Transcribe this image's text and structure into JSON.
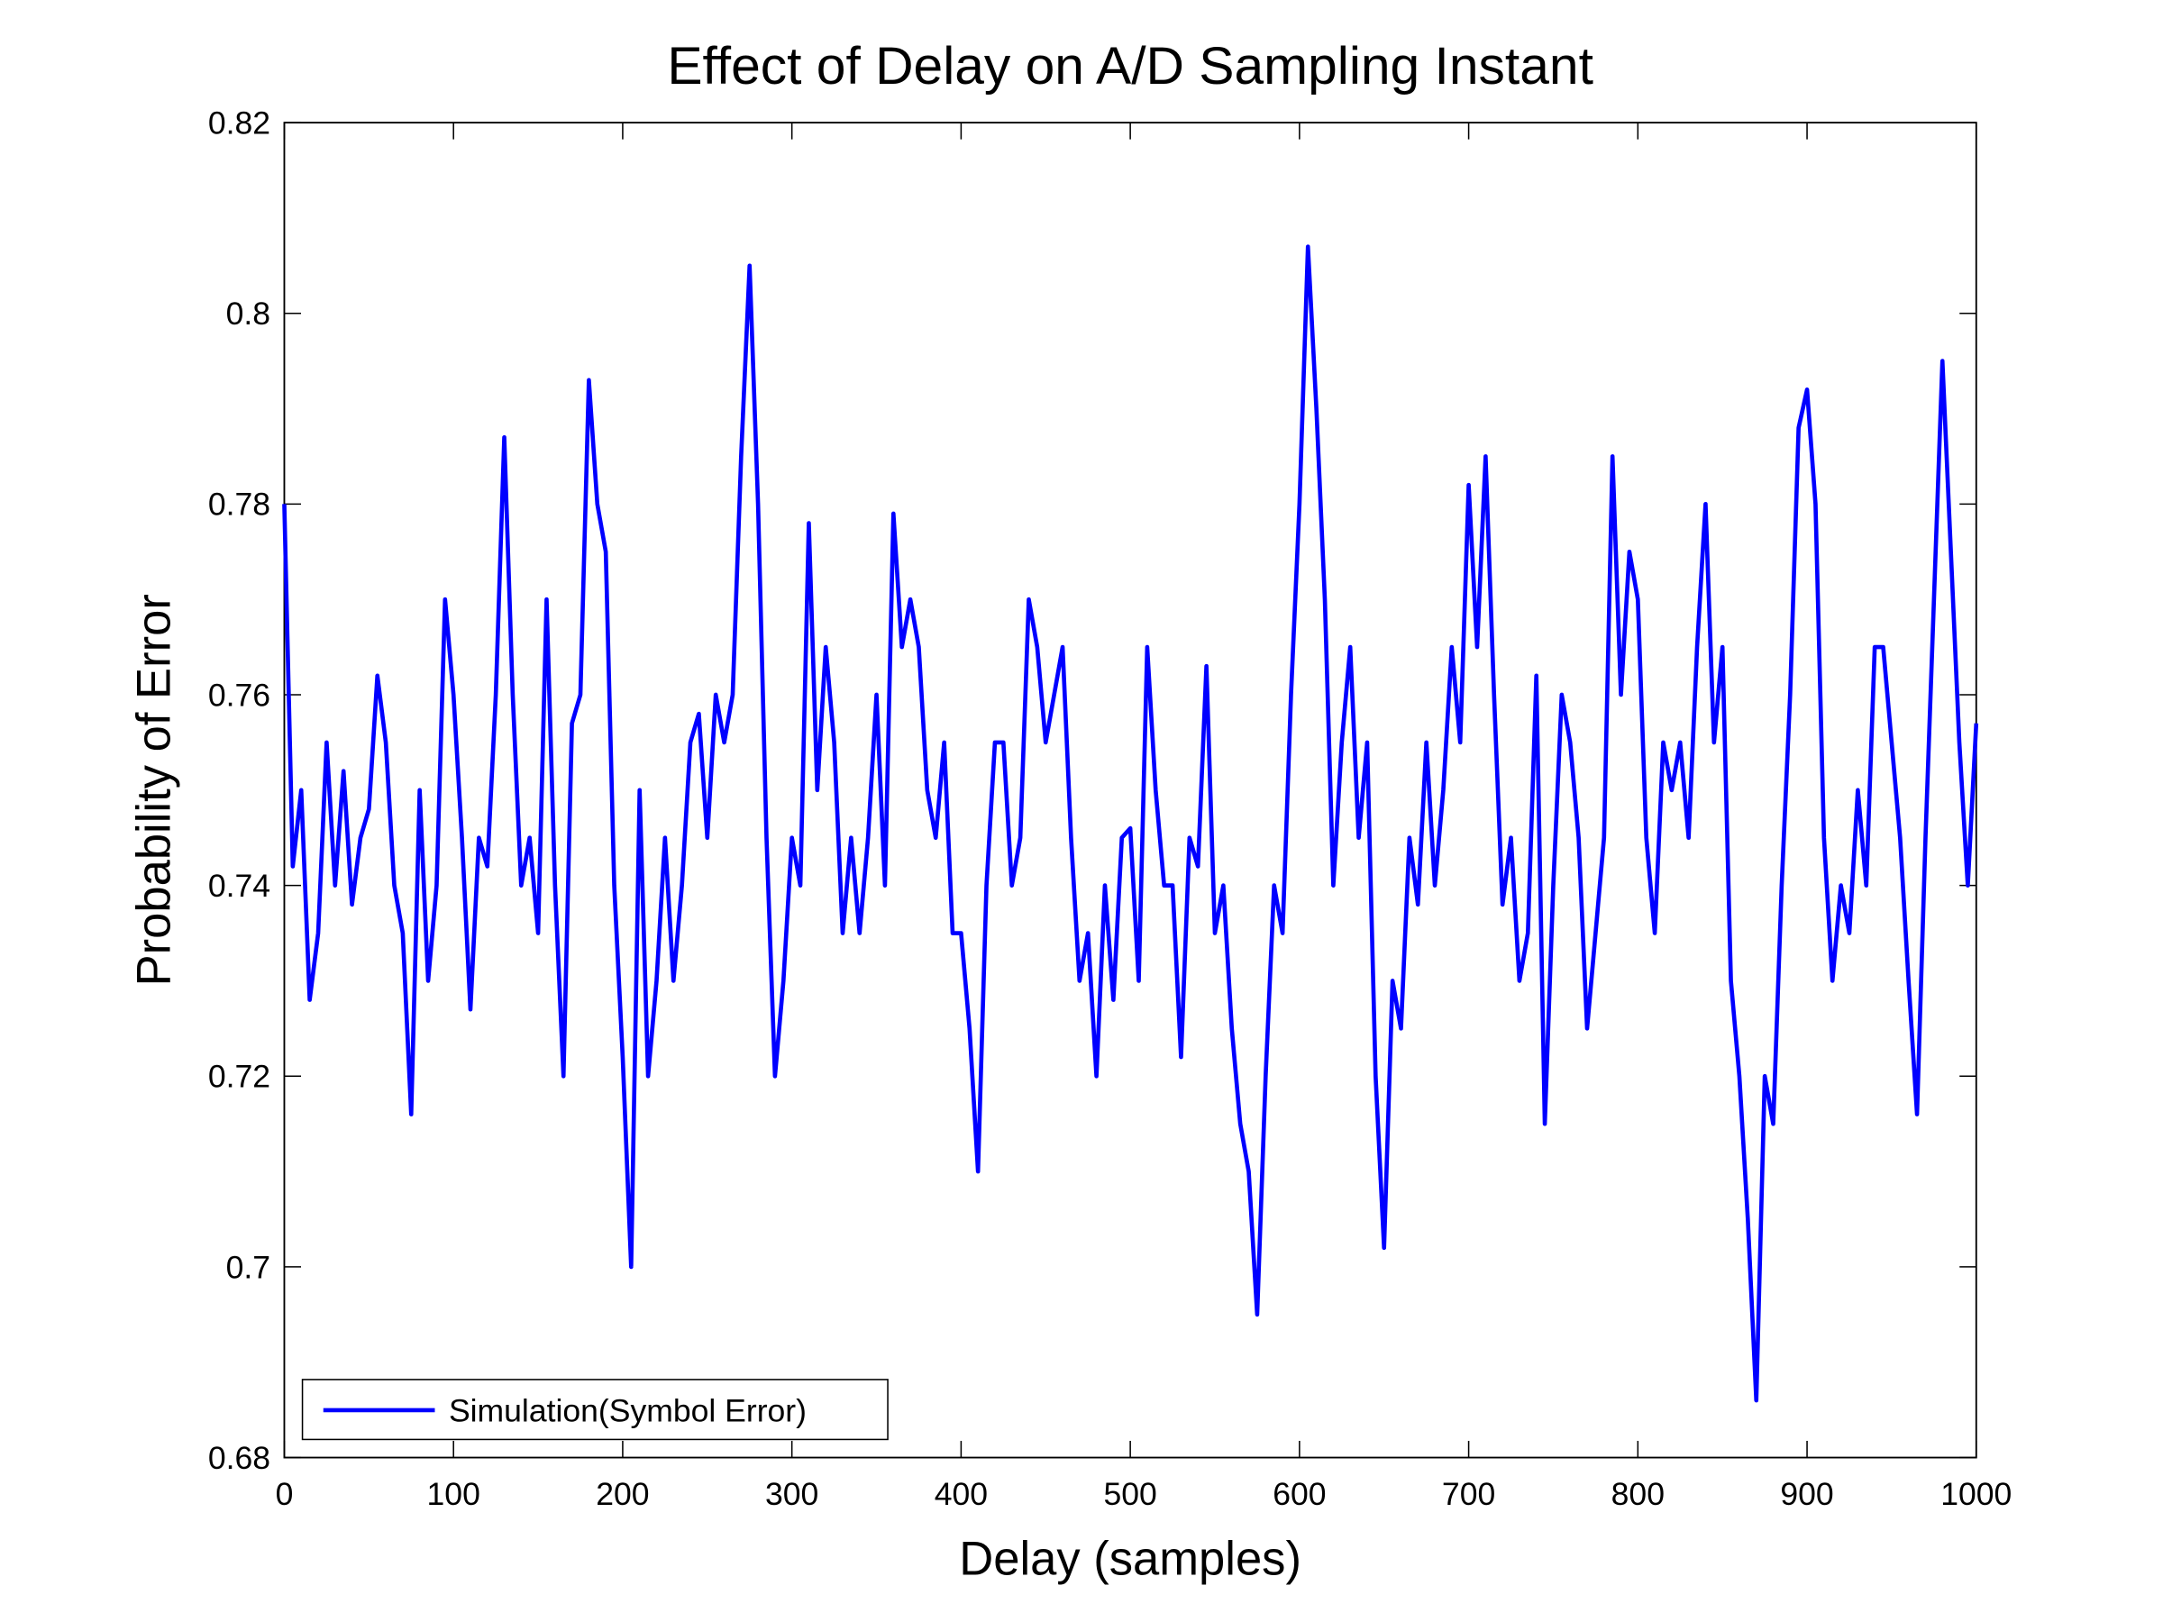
{
  "chart_data": {
    "type": "line",
    "title": "Effect of Delay on A/D Sampling Instant",
    "xlabel": "Delay (samples)",
    "ylabel": "Probability of Error",
    "legend": "lower left",
    "x": [
      0,
      5,
      10,
      15,
      20,
      25,
      30,
      35,
      40,
      45,
      50,
      55,
      60,
      65,
      70,
      75,
      80,
      85,
      90,
      95,
      100,
      105,
      110,
      115,
      120,
      125,
      130,
      135,
      140,
      145,
      150,
      155,
      160,
      165,
      170,
      175,
      180,
      185,
      190,
      195,
      200,
      205,
      210,
      215,
      220,
      225,
      230,
      235,
      240,
      245,
      250,
      255,
      260,
      265,
      270,
      275,
      280,
      285,
      290,
      295,
      300,
      305,
      310,
      315,
      320,
      325,
      330,
      335,
      340,
      345,
      350,
      355,
      360,
      365,
      370,
      375,
      380,
      385,
      390,
      395,
      400,
      405,
      410,
      415,
      420,
      425,
      430,
      435,
      440,
      445,
      450,
      455,
      460,
      465,
      470,
      475,
      480,
      485,
      490,
      495,
      500,
      505,
      510,
      515,
      520,
      525,
      530,
      535,
      540,
      545,
      550,
      555,
      560,
      565,
      570,
      575,
      580,
      585,
      590,
      595,
      600,
      605,
      610,
      615,
      620,
      625,
      630,
      635,
      640,
      645,
      650,
      655,
      660,
      665,
      670,
      675,
      680,
      685,
      690,
      695,
      700,
      705,
      710,
      715,
      720,
      725,
      730,
      735,
      740,
      745,
      750,
      755,
      760,
      765,
      770,
      775,
      780,
      785,
      790,
      795,
      800,
      805,
      810,
      815,
      820,
      825,
      830,
      835,
      840,
      845,
      850,
      855,
      860,
      865,
      870,
      875,
      880,
      885,
      890,
      895,
      900,
      905,
      910,
      915,
      920,
      925,
      930,
      935,
      940,
      945,
      950,
      955,
      960,
      965,
      970,
      975,
      980,
      985,
      990,
      995,
      1000
    ],
    "series": [
      {
        "name": "Simulation(Symbol Error)",
        "color": "#0000ff",
        "values": [
          0.78,
          0.742,
          0.75,
          0.728,
          0.735,
          0.755,
          0.74,
          0.752,
          0.738,
          0.745,
          0.748,
          0.762,
          0.755,
          0.74,
          0.735,
          0.716,
          0.75,
          0.73,
          0.74,
          0.77,
          0.76,
          0.745,
          0.727,
          0.745,
          0.742,
          0.76,
          0.787,
          0.76,
          0.74,
          0.745,
          0.735,
          0.77,
          0.74,
          0.72,
          0.757,
          0.76,
          0.793,
          0.78,
          0.775,
          0.74,
          0.722,
          0.7,
          0.75,
          0.72,
          0.73,
          0.745,
          0.73,
          0.74,
          0.755,
          0.758,
          0.745,
          0.76,
          0.755,
          0.76,
          0.785,
          0.805,
          0.78,
          0.745,
          0.72,
          0.73,
          0.745,
          0.74,
          0.778,
          0.75,
          0.765,
          0.755,
          0.735,
          0.745,
          0.735,
          0.745,
          0.76,
          0.74,
          0.779,
          0.765,
          0.77,
          0.765,
          0.75,
          0.745,
          0.755,
          0.735,
          0.735,
          0.725,
          0.71,
          0.74,
          0.755,
          0.755,
          0.74,
          0.745,
          0.77,
          0.765,
          0.755,
          0.76,
          0.765,
          0.745,
          0.73,
          0.735,
          0.72,
          0.74,
          0.728,
          0.745,
          0.746,
          0.73,
          0.765,
          0.75,
          0.74,
          0.74,
          0.722,
          0.745,
          0.742,
          0.763,
          0.735,
          0.74,
          0.725,
          0.715,
          0.71,
          0.695,
          0.72,
          0.74,
          0.735,
          0.76,
          0.78,
          0.807,
          0.79,
          0.77,
          0.74,
          0.755,
          0.765,
          0.745,
          0.755,
          0.72,
          0.702,
          0.73,
          0.725,
          0.745,
          0.738,
          0.755,
          0.74,
          0.75,
          0.765,
          0.755,
          0.782,
          0.765,
          0.785,
          0.76,
          0.738,
          0.745,
          0.73,
          0.735,
          0.762,
          0.715,
          0.74,
          0.76,
          0.755,
          0.745,
          0.725,
          0.735,
          0.745,
          0.785,
          0.76,
          0.775,
          0.77,
          0.745,
          0.735,
          0.755,
          0.75,
          0.755,
          0.745,
          0.765,
          0.78,
          0.755,
          0.765,
          0.73,
          0.72,
          0.705,
          0.686,
          0.72,
          0.715,
          0.74,
          0.76,
          0.788,
          0.792,
          0.78,
          0.745,
          0.73,
          0.74,
          0.735,
          0.75,
          0.74,
          0.765,
          0.765,
          0.755,
          0.745,
          0.73,
          0.716,
          0.745,
          0.77,
          0.795,
          0.775,
          0.755,
          0.74,
          0.757
        ]
      }
    ],
    "xlim": [
      0,
      1000
    ],
    "xticks": [
      0,
      100,
      200,
      300,
      400,
      500,
      600,
      700,
      800,
      900,
      1000
    ],
    "ylim": [
      0.68,
      0.82
    ],
    "yticks": [
      0.68,
      0.7,
      0.72,
      0.74,
      0.76,
      0.78,
      0.8,
      0.82
    ]
  }
}
